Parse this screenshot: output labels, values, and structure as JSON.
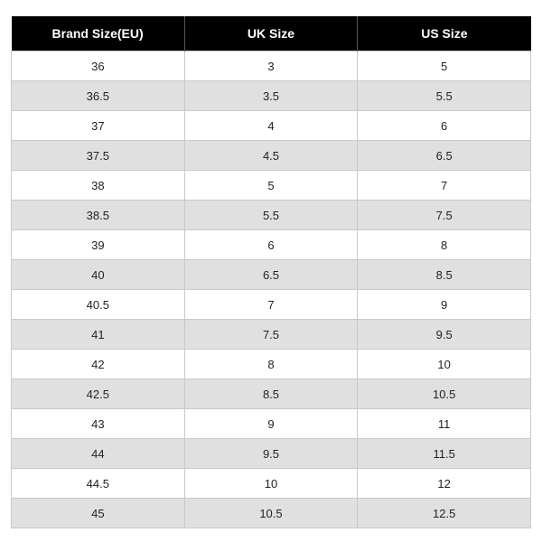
{
  "size_table": {
    "type": "table",
    "header_bg": "#000000",
    "header_fg": "#ffffff",
    "row_bg_odd": "#ffffff",
    "row_bg_even": "#e0e0e0",
    "border_color": "#c9c9c9",
    "header_fontsize": 14,
    "cell_fontsize": 13,
    "columns": [
      "Brand Size(EU)",
      "UK Size",
      "US Size"
    ],
    "rows": [
      [
        "36",
        "3",
        "5"
      ],
      [
        "36.5",
        "3.5",
        "5.5"
      ],
      [
        "37",
        "4",
        "6"
      ],
      [
        "37.5",
        "4.5",
        "6.5"
      ],
      [
        "38",
        "5",
        "7"
      ],
      [
        "38.5",
        "5.5",
        "7.5"
      ],
      [
        "39",
        "6",
        "8"
      ],
      [
        "40",
        "6.5",
        "8.5"
      ],
      [
        "40.5",
        "7",
        "9"
      ],
      [
        "41",
        "7.5",
        "9.5"
      ],
      [
        "42",
        "8",
        "10"
      ],
      [
        "42.5",
        "8.5",
        "10.5"
      ],
      [
        "43",
        "9",
        "11"
      ],
      [
        "44",
        "9.5",
        "11.5"
      ],
      [
        "44.5",
        "10",
        "12"
      ],
      [
        "45",
        "10.5",
        "12.5"
      ]
    ]
  }
}
